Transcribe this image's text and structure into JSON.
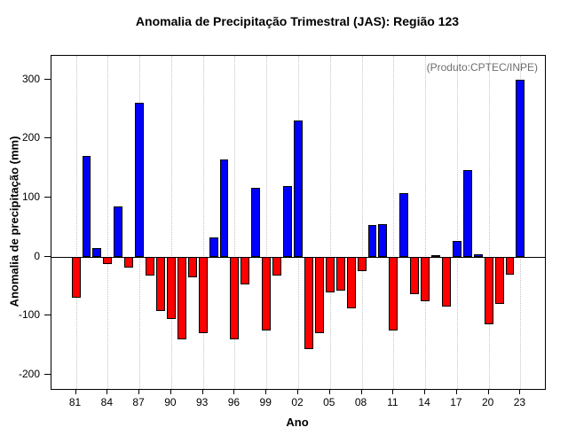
{
  "chart_data": {
    "type": "bar",
    "title": "Anomalia de Precipitação Trimestral (JAS): Região 123",
    "annotation": "(Produto:CPTEC/INPE)",
    "xlabel": "Ano",
    "ylabel": "Anomalia de precipitação (mm)",
    "ylim": [
      -224,
      340
    ],
    "y_ticks": [
      -200,
      -100,
      0,
      100,
      200,
      300
    ],
    "x_tick_labels": [
      "81",
      "84",
      "87",
      "90",
      "93",
      "96",
      "99",
      "02",
      "05",
      "08",
      "11",
      "14",
      "17",
      "20",
      "23"
    ],
    "x_tick_every": 3,
    "grid": "vertical-dotted",
    "legend_position": "none",
    "years": [
      "81",
      "82",
      "83",
      "84",
      "85",
      "86",
      "87",
      "88",
      "89",
      "90",
      "91",
      "92",
      "93",
      "94",
      "95",
      "96",
      "97",
      "98",
      "99",
      "00",
      "01",
      "02",
      "03",
      "04",
      "05",
      "06",
      "07",
      "08",
      "09",
      "10",
      "11",
      "12",
      "13",
      "14",
      "15",
      "16",
      "17",
      "18",
      "19",
      "20",
      "21",
      "22",
      "23"
    ],
    "values": [
      -70,
      170,
      15,
      -12,
      85,
      -18,
      260,
      -32,
      -92,
      -105,
      -140,
      -35,
      -130,
      32,
      165,
      -140,
      -47,
      117,
      -125,
      -32,
      119,
      230,
      -157,
      -130,
      -60,
      -57,
      -88,
      -25,
      53,
      55,
      -125,
      107,
      -63,
      -76,
      3,
      -84,
      27,
      146,
      4,
      -114,
      -80,
      -30,
      300
    ],
    "colors": {
      "positive": "#0000ff",
      "negative": "#ff0000",
      "bar_border": "#000000",
      "annotation_text": "#6e6e6e",
      "gridline": "#c4c4c4"
    }
  }
}
